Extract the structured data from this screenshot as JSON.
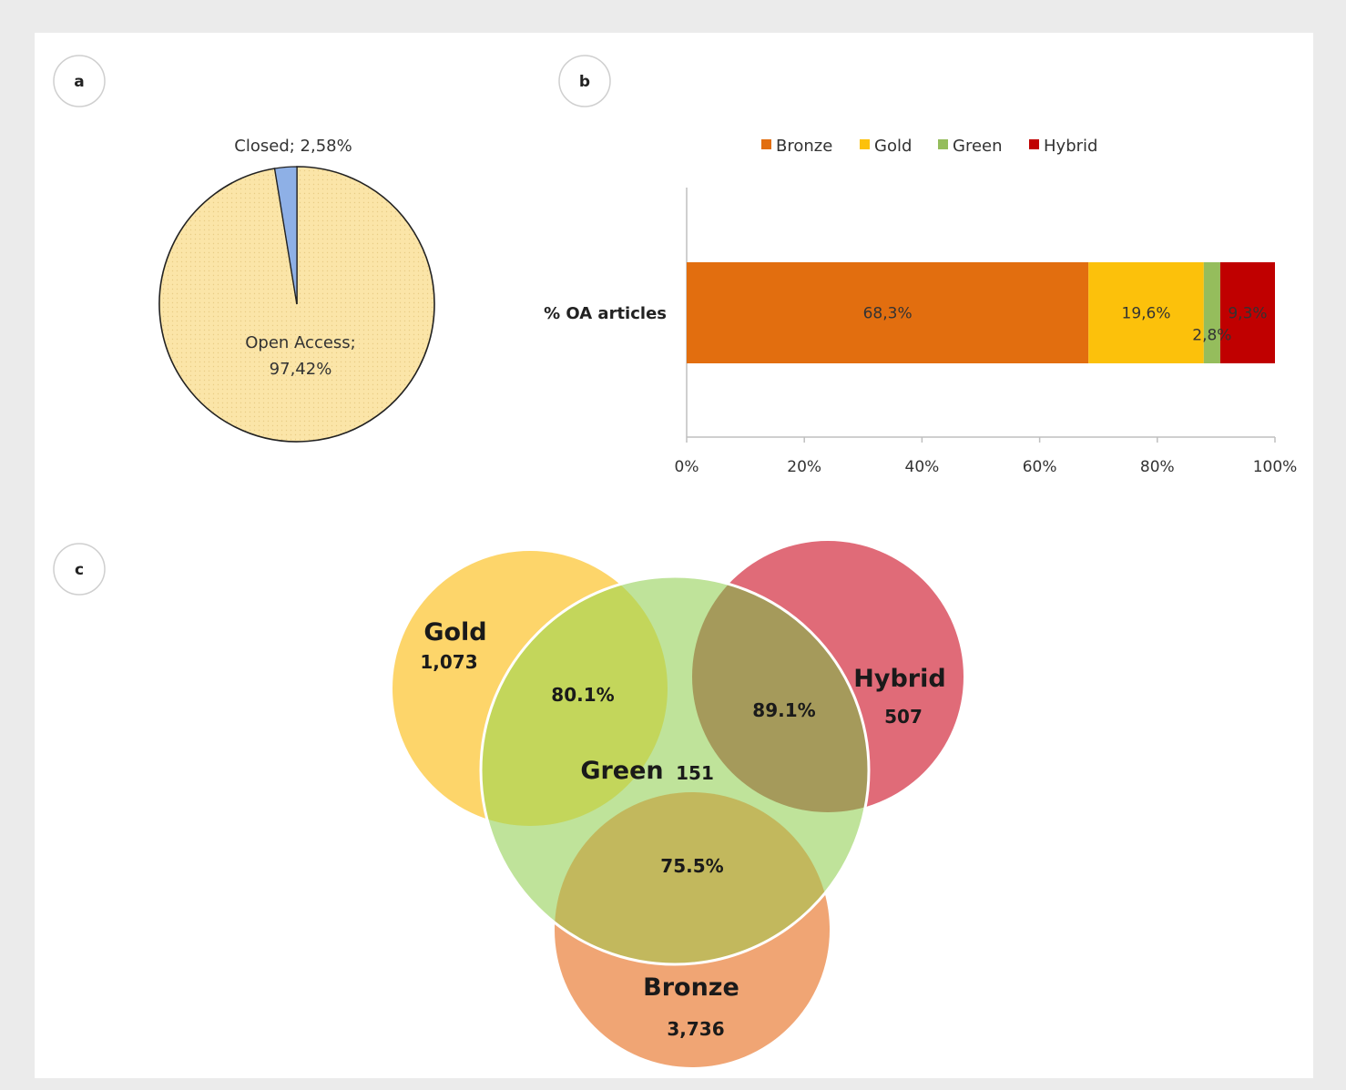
{
  "panels": {
    "a": "a",
    "b": "b",
    "c": "c"
  },
  "colors": {
    "open_access": "#fbe5a8",
    "closed": "#8eb0e6",
    "bronze": "#e26e0f",
    "gold": "#fcc10b",
    "green": "#95bd5c",
    "hybrid": "#c00000",
    "venn_gold": "#fdd56a",
    "venn_hybrid": "#e06b78",
    "venn_bronze": "#f0a574",
    "venn_green": "#bfe39a"
  },
  "chart_data": [
    {
      "type": "pie",
      "panel": "a",
      "slices": [
        {
          "label": "Open Access",
          "value": 97.42,
          "display": [
            "Open Access;",
            "97,42%"
          ]
        },
        {
          "label": "Closed",
          "value": 2.58,
          "display": [
            "Closed; 2,58%"
          ]
        }
      ]
    },
    {
      "type": "bar",
      "orientation": "horizontal",
      "stacked": true,
      "panel": "b",
      "categories": [
        "% OA articles"
      ],
      "series": [
        {
          "name": "Bronze",
          "values": [
            68.3
          ],
          "label": "68,3%"
        },
        {
          "name": "Gold",
          "values": [
            19.6
          ],
          "label": "19,6%"
        },
        {
          "name": "Green",
          "values": [
            2.8
          ],
          "label": "2,8%"
        },
        {
          "name": "Hybrid",
          "values": [
            9.3
          ],
          "label": "9,3%"
        }
      ],
      "xlim": [
        0,
        100
      ],
      "xticks": [
        "0%",
        "20%",
        "40%",
        "60%",
        "80%",
        "100%"
      ],
      "legend": "top"
    },
    {
      "type": "venn",
      "panel": "c",
      "sets": [
        {
          "name": "Gold",
          "count": "1,073"
        },
        {
          "name": "Hybrid",
          "count": "507"
        },
        {
          "name": "Green",
          "count": "151"
        },
        {
          "name": "Bronze",
          "count": "3,736"
        }
      ],
      "overlaps": [
        {
          "sets": [
            "Gold",
            "Green"
          ],
          "label": "80.1%"
        },
        {
          "sets": [
            "Hybrid",
            "Green"
          ],
          "label": "89.1%"
        },
        {
          "sets": [
            "Bronze",
            "Green"
          ],
          "label": "75.5%"
        }
      ]
    }
  ]
}
